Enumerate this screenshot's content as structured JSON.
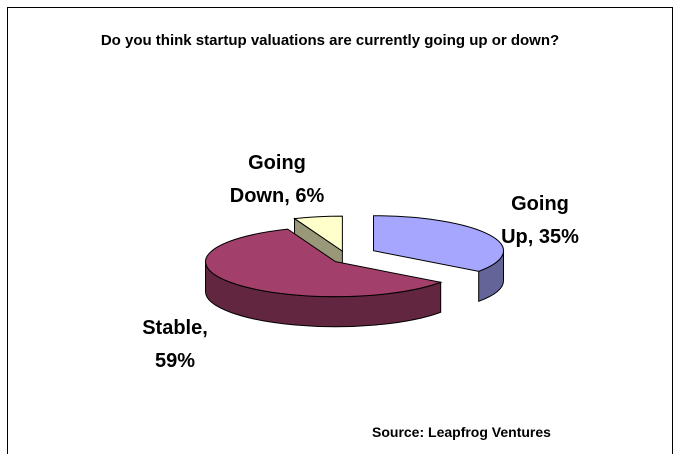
{
  "chart_data": {
    "type": "pie",
    "title": "Do you think startup valuations are currently going up or down?",
    "values": [
      35,
      59,
      6
    ],
    "value_labels": [
      "Going\nUp, 35%",
      "Stable,\n59%",
      "Going\nDown, 6%"
    ],
    "colors": [
      "#a6a6ff",
      "#a33f6b",
      "#ffffcc"
    ],
    "source": "Source: Leapfrog Ventures"
  }
}
